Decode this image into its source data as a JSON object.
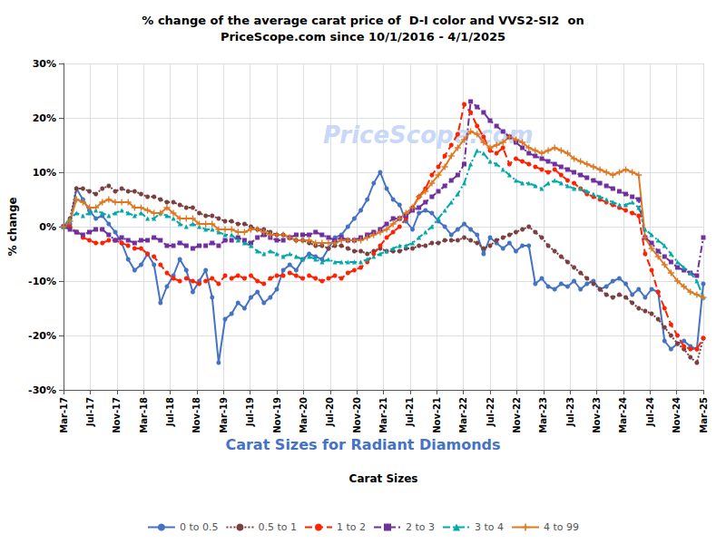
{
  "chart_data": {
    "type": "line",
    "title": "% change of the average carat price of  D-I color and VVS2-SI2  on\nPriceScope.com since 10/1/2016 - 4/1/2025",
    "x_label": "Carat Sizes",
    "y_label": "% change",
    "annotations": [
      "PriceScope.com",
      "Carat Sizes for Radiant Diamonds"
    ],
    "x": [
      0,
      1,
      2,
      3,
      4,
      5,
      6,
      7,
      8,
      9,
      10,
      11,
      12,
      13,
      14,
      15,
      16,
      17,
      18,
      19,
      20,
      21,
      22,
      23,
      24,
      25,
      26,
      27,
      28,
      29,
      30,
      31,
      32,
      33,
      34,
      35,
      36,
      37,
      38,
      39,
      40,
      41,
      42,
      43,
      44,
      45,
      46,
      47,
      48,
      49,
      50,
      51,
      52,
      53,
      54,
      55,
      56,
      57,
      58,
      59,
      60,
      61,
      62,
      63,
      64,
      65,
      66,
      67,
      68,
      69,
      70,
      71,
      72,
      73,
      74,
      75,
      76,
      77,
      78,
      79,
      80,
      81,
      82,
      83,
      84,
      85,
      86,
      87,
      88,
      89,
      90,
      91,
      92,
      93,
      94,
      95,
      96,
      97,
      98,
      99
    ],
    "xlim": [
      0,
      99
    ],
    "xticks": [
      {
        "value": 0,
        "label": "Mar-17"
      },
      {
        "value": 4.125,
        "label": "Jul-17"
      },
      {
        "value": 8.25,
        "label": "Nov-17"
      },
      {
        "value": 12.375,
        "label": "Mar-18"
      },
      {
        "value": 16.5,
        "label": "Jul-18"
      },
      {
        "value": 20.625,
        "label": "Nov-18"
      },
      {
        "value": 24.75,
        "label": "Mar-19"
      },
      {
        "value": 28.875,
        "label": "Jul-19"
      },
      {
        "value": 33,
        "label": "Nov-19"
      },
      {
        "value": 37.125,
        "label": "Mar-20"
      },
      {
        "value": 41.25,
        "label": "Jul-20"
      },
      {
        "value": 45.375,
        "label": "Nov-20"
      },
      {
        "value": 49.5,
        "label": "Mar-21"
      },
      {
        "value": 53.625,
        "label": "Jul-21"
      },
      {
        "value": 57.75,
        "label": "Nov-21"
      },
      {
        "value": 61.875,
        "label": "Mar-22"
      },
      {
        "value": 66,
        "label": "Jul-22"
      },
      {
        "value": 70.125,
        "label": "Nov-22"
      },
      {
        "value": 74.25,
        "label": "Mar-23"
      },
      {
        "value": 78.375,
        "label": "Jul-23"
      },
      {
        "value": 82.5,
        "label": "Nov-23"
      },
      {
        "value": 86.625,
        "label": "Mar-24"
      },
      {
        "value": 90.75,
        "label": "Jul-24"
      },
      {
        "value": 94.875,
        "label": "Nov-24"
      },
      {
        "value": 99,
        "label": "Mar-25"
      }
    ],
    "ylim": [
      -30,
      30
    ],
    "yticks": [
      {
        "value": -30,
        "label": "-30%"
      },
      {
        "value": -20,
        "label": "-20%"
      },
      {
        "value": -10,
        "label": "-10%"
      },
      {
        "value": 0,
        "label": "0%"
      },
      {
        "value": 10,
        "label": "10%"
      },
      {
        "value": 20,
        "label": "20%"
      },
      {
        "value": 30,
        "label": "30%"
      }
    ],
    "grid": true,
    "legend": "bottom",
    "series": [
      {
        "name": "0 to 0.5",
        "color": "#4472c4",
        "line_style": "solid",
        "marker": "circle",
        "values": [
          0.0,
          0.5,
          7.0,
          5.0,
          3.0,
          1.5,
          2.0,
          0.5,
          -1.0,
          -3.0,
          -6.0,
          -8.0,
          -7.0,
          -5.0,
          -7.0,
          -14.0,
          -11.0,
          -9.0,
          -6.0,
          -8.0,
          -12.0,
          -10.0,
          -8.0,
          -13.0,
          -25.0,
          -17.0,
          -16.0,
          -14.0,
          -15.0,
          -13.0,
          -12.0,
          -14.0,
          -13.0,
          -11.5,
          -8.0,
          -7.0,
          -8.0,
          -6.0,
          -5.0,
          -5.5,
          -6.0,
          -4.0,
          -2.0,
          -1.5,
          0.0,
          1.5,
          3.0,
          5.0,
          8.0,
          10.0,
          7.0,
          5.0,
          4.0,
          1.0,
          -0.5,
          2.5,
          3.0,
          2.5,
          1.0,
          0.0,
          -1.5,
          -0.5,
          0.5,
          -0.5,
          -1.5,
          -5.0,
          -2.0,
          -3.0,
          -4.0,
          -3.0,
          -4.5,
          -3.5,
          -3.5,
          -10.5,
          -9.5,
          -11.0,
          -11.5,
          -10.5,
          -11.0,
          -10.0,
          -11.5,
          -10.5,
          -10.0,
          -11.5,
          -11.0,
          -10.0,
          -9.5,
          -10.5,
          -12.5,
          -11.5,
          -13.0,
          -11.5,
          -12.0,
          -21.0,
          -22.5,
          -21.5,
          -21.0,
          -22.0,
          -22.5,
          -10.5
        ]
      },
      {
        "name": "0.5 to 1",
        "color": "#7b3f3f",
        "line_style": "dotted",
        "marker": "circle",
        "values": [
          0.0,
          1.5,
          7.0,
          7.0,
          6.5,
          6.0,
          7.0,
          7.5,
          6.5,
          7.0,
          6.5,
          6.5,
          6.0,
          5.5,
          5.5,
          5.0,
          4.5,
          4.5,
          4.0,
          3.5,
          3.5,
          2.5,
          2.0,
          2.0,
          1.5,
          1.0,
          1.0,
          0.5,
          0.5,
          0.0,
          -0.5,
          -0.5,
          -1.0,
          -1.5,
          -1.5,
          -2.0,
          -2.5,
          -2.5,
          -3.0,
          -3.5,
          -3.5,
          -4.0,
          -3.5,
          -3.5,
          -4.0,
          -4.5,
          -4.5,
          -5.0,
          -4.5,
          -4.0,
          -4.5,
          -4.5,
          -4.5,
          -4.0,
          -4.0,
          -3.5,
          -3.5,
          -3.0,
          -3.0,
          -2.5,
          -2.5,
          -2.5,
          -2.0,
          -2.5,
          -3.0,
          -4.0,
          -3.5,
          -2.5,
          -2.0,
          -1.5,
          -1.0,
          -0.5,
          0.0,
          -1.0,
          -2.0,
          -3.5,
          -4.5,
          -5.5,
          -6.5,
          -7.5,
          -8.5,
          -9.5,
          -10.5,
          -11.5,
          -12.5,
          -13.0,
          -12.5,
          -13.0,
          -14.0,
          -15.0,
          -15.5,
          -16.0,
          -17.0,
          -18.5,
          -20.0,
          -21.5,
          -22.5,
          -24.0,
          -25.0,
          -20.5
        ]
      },
      {
        "name": "1 to 2",
        "color": "#ff2200",
        "line_style": "dashed",
        "marker": "circle",
        "values": [
          0.0,
          0.0,
          -1.0,
          -2.0,
          -2.5,
          -3.0,
          -3.0,
          -2.5,
          -2.5,
          -3.0,
          -3.5,
          -4.0,
          -4.0,
          -5.0,
          -5.5,
          -7.0,
          -8.5,
          -9.5,
          -10.0,
          -9.5,
          -10.0,
          -10.5,
          -10.0,
          -9.5,
          -10.5,
          -9.0,
          -9.5,
          -9.0,
          -9.5,
          -9.0,
          -10.0,
          -10.5,
          -9.5,
          -9.0,
          -9.0,
          -8.5,
          -9.0,
          -9.5,
          -9.0,
          -9.5,
          -10.0,
          -9.5,
          -9.0,
          -9.5,
          -8.5,
          -8.0,
          -7.5,
          -6.5,
          -5.0,
          -3.5,
          -2.0,
          -1.0,
          0.0,
          1.5,
          3.5,
          5.5,
          7.0,
          9.5,
          11.0,
          13.0,
          15.0,
          17.0,
          22.5,
          21.0,
          18.5,
          16.5,
          14.0,
          13.5,
          14.5,
          11.5,
          12.5,
          12.0,
          11.5,
          11.0,
          10.5,
          10.0,
          10.5,
          9.5,
          8.5,
          8.0,
          7.0,
          6.0,
          5.5,
          5.0,
          4.5,
          4.0,
          3.5,
          3.0,
          2.5,
          2.0,
          -5.0,
          -8.0,
          -12.0,
          -15.0,
          -18.0,
          -20.0,
          -22.0,
          -22.5,
          -22.5,
          -20.5
        ]
      },
      {
        "name": "2 to 3",
        "color": "#7030a0",
        "line_style": "dashdot",
        "marker": "square",
        "values": [
          0.0,
          -0.5,
          -1.0,
          -1.5,
          -1.0,
          -0.5,
          -0.5,
          -1.5,
          -2.5,
          -2.0,
          -2.5,
          -3.0,
          -2.5,
          -2.5,
          -2.0,
          -2.5,
          -3.5,
          -3.5,
          -3.0,
          -3.5,
          -4.0,
          -3.5,
          -3.5,
          -3.0,
          -3.5,
          -2.5,
          -2.5,
          -2.0,
          -2.5,
          -3.0,
          -2.0,
          -1.5,
          -2.0,
          -2.5,
          -2.5,
          -2.0,
          -1.5,
          -1.5,
          -1.5,
          -1.0,
          -1.5,
          -2.0,
          -2.5,
          -2.0,
          -2.5,
          -2.5,
          -2.0,
          -1.5,
          -1.0,
          -0.5,
          0.5,
          1.5,
          1.5,
          2.0,
          3.0,
          3.5,
          4.5,
          5.5,
          6.5,
          7.5,
          8.5,
          9.5,
          11.5,
          23.0,
          22.0,
          21.0,
          19.5,
          18.5,
          17.5,
          16.5,
          15.5,
          14.5,
          13.5,
          13.0,
          12.5,
          12.0,
          11.5,
          11.0,
          10.5,
          10.0,
          9.5,
          9.0,
          8.5,
          8.0,
          7.5,
          7.0,
          6.5,
          6.0,
          5.5,
          5.0,
          -2.0,
          -3.0,
          -4.5,
          -5.5,
          -6.5,
          -7.5,
          -8.0,
          -8.5,
          -9.0,
          -2.0
        ]
      },
      {
        "name": "3 to 4",
        "color": "#00aaaa",
        "line_style": "dashdot",
        "marker": "triangle",
        "values": [
          0.0,
          1.5,
          2.5,
          2.0,
          2.5,
          3.0,
          2.5,
          2.0,
          2.5,
          3.0,
          2.5,
          2.0,
          2.5,
          1.5,
          1.5,
          2.5,
          2.0,
          1.5,
          0.5,
          0.0,
          0.5,
          0.0,
          -0.5,
          -0.5,
          -1.0,
          -1.5,
          -1.5,
          -2.5,
          -3.0,
          -3.5,
          -4.5,
          -5.0,
          -4.5,
          -5.0,
          -5.5,
          -5.0,
          -5.5,
          -6.0,
          -5.5,
          -6.0,
          -6.5,
          -6.0,
          -6.5,
          -6.5,
          -6.5,
          -6.5,
          -6.5,
          -6.0,
          -5.5,
          -5.0,
          -4.5,
          -4.0,
          -3.5,
          -3.5,
          -3.0,
          -2.0,
          -1.0,
          0.0,
          1.5,
          3.0,
          4.5,
          6.0,
          8.0,
          11.5,
          14.0,
          13.5,
          12.0,
          11.5,
          10.5,
          9.5,
          8.5,
          8.0,
          8.0,
          7.5,
          7.0,
          8.0,
          8.5,
          8.0,
          7.5,
          7.0,
          7.0,
          6.5,
          6.0,
          5.5,
          5.0,
          4.5,
          4.0,
          4.0,
          4.5,
          3.5,
          -0.5,
          -1.5,
          -2.5,
          -3.5,
          -5.0,
          -6.5,
          -7.5,
          -8.5,
          -10.0,
          -13.0
        ]
      },
      {
        "name": "4 to 99",
        "color": "#e07820",
        "line_style": "solid",
        "marker": "plus",
        "values": [
          0.0,
          1.0,
          5.0,
          4.5,
          3.5,
          3.5,
          4.5,
          5.0,
          4.5,
          4.5,
          4.5,
          3.5,
          3.5,
          3.0,
          2.5,
          2.5,
          3.5,
          2.5,
          1.5,
          1.5,
          1.5,
          0.5,
          0.5,
          0.5,
          -0.5,
          -0.5,
          -0.5,
          -1.0,
          -1.0,
          -0.5,
          -0.5,
          -1.0,
          -1.5,
          -1.5,
          -1.5,
          -2.0,
          -2.5,
          -2.5,
          -2.5,
          -3.0,
          -3.0,
          -3.0,
          -3.0,
          -2.5,
          -2.5,
          -2.5,
          -2.5,
          -2.0,
          -1.5,
          -1.0,
          -0.5,
          0.5,
          1.5,
          2.5,
          3.5,
          5.5,
          6.5,
          8.0,
          9.5,
          11.0,
          13.0,
          14.5,
          16.0,
          17.5,
          17.0,
          15.5,
          14.5,
          15.0,
          15.5,
          16.5,
          16.0,
          15.5,
          14.5,
          14.0,
          13.5,
          14.0,
          14.5,
          14.0,
          13.5,
          12.5,
          12.0,
          11.5,
          11.0,
          10.5,
          10.0,
          9.5,
          10.0,
          10.5,
          10.0,
          9.5,
          -2.0,
          -4.0,
          -5.5,
          -7.0,
          -8.5,
          -10.0,
          -11.0,
          -12.0,
          -12.5,
          -13.0
        ]
      }
    ]
  }
}
